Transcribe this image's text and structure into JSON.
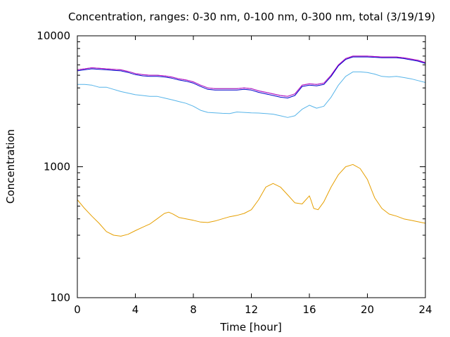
{
  "chart_data": {
    "type": "line",
    "title": "Concentration, ranges: 0-30 nm, 0-100 nm, 0-300 nm, total (3/19/19)",
    "xlabel": "Time [hour]",
    "ylabel": "Concentration",
    "xlim": [
      0,
      24
    ],
    "ylim": [
      100,
      10000
    ],
    "yscale": "log",
    "grid": false,
    "legend": "none",
    "x_ticks": [
      "0",
      "4",
      "8",
      "12",
      "16",
      "20",
      "24"
    ],
    "y_ticks": [
      "100",
      "1000",
      "10000"
    ],
    "series": [
      {
        "color": "#e69f00",
        "x": [
          0,
          0.5,
          1,
          1.5,
          2,
          2.5,
          3,
          3.5,
          4,
          4.5,
          5,
          5.5,
          6,
          6.3,
          6.6,
          7,
          7.5,
          8,
          8.5,
          9,
          9.5,
          10,
          10.5,
          11,
          11.5,
          12,
          12.5,
          13,
          13.5,
          14,
          14.5,
          15,
          15.5,
          16,
          16.1,
          16.3,
          16.6,
          17,
          17.5,
          18,
          18.5,
          19,
          19.5,
          20,
          20.5,
          21,
          21.5,
          22,
          22.5,
          23,
          23.5,
          24
        ],
        "y": [
          560,
          480,
          420,
          370,
          320,
          300,
          295,
          305,
          325,
          345,
          365,
          400,
          440,
          450,
          435,
          410,
          400,
          390,
          378,
          375,
          385,
          400,
          415,
          425,
          440,
          470,
          560,
          700,
          745,
          700,
          610,
          530,
          520,
          600,
          560,
          480,
          470,
          540,
          700,
          870,
          1000,
          1040,
          970,
          800,
          580,
          480,
          435,
          420,
          400,
          390,
          380,
          370
        ]
      },
      {
        "color": "#56b4e9",
        "x": [
          0,
          0.5,
          1,
          1.5,
          2,
          2.5,
          3,
          3.5,
          4,
          4.5,
          5,
          5.5,
          6,
          6.5,
          7,
          7.5,
          8,
          8.5,
          9,
          9.5,
          10,
          10.5,
          11,
          11.5,
          12,
          12.5,
          13,
          13.5,
          14,
          14.5,
          15,
          15.5,
          16,
          16.5,
          17,
          17.5,
          18,
          18.5,
          19,
          19.5,
          20,
          20.5,
          21,
          21.5,
          22,
          22.5,
          23,
          23.5,
          24
        ],
        "y": [
          4250,
          4250,
          4200,
          4050,
          4050,
          3900,
          3750,
          3650,
          3550,
          3500,
          3450,
          3450,
          3350,
          3250,
          3150,
          3050,
          2900,
          2700,
          2600,
          2580,
          2560,
          2550,
          2620,
          2600,
          2580,
          2570,
          2550,
          2520,
          2450,
          2380,
          2450,
          2750,
          2950,
          2800,
          2900,
          3400,
          4200,
          4900,
          5300,
          5300,
          5250,
          5100,
          4900,
          4850,
          4900,
          4800,
          4700,
          4550,
          4400
        ]
      },
      {
        "color": "#009e73",
        "x": [
          0,
          0.5,
          1,
          1.5,
          2,
          2.5,
          3,
          3.5,
          4,
          4.5,
          5,
          5.5,
          6,
          6.5,
          7,
          7.5,
          8,
          8.5,
          9,
          9.5,
          10,
          10.5,
          11,
          11.5,
          12,
          12.5,
          13,
          13.5,
          14,
          14.5,
          15,
          15.5,
          16,
          16.5,
          17,
          17.5,
          18,
          18.5,
          19,
          19.5,
          20,
          20.5,
          21,
          21.5,
          22,
          22.5,
          23,
          23.5,
          24
        ],
        "y": [
          5500,
          5600,
          5700,
          5650,
          5600,
          5550,
          5500,
          5350,
          5150,
          5050,
          5000,
          5000,
          4950,
          4850,
          4700,
          4600,
          4450,
          4200,
          4000,
          3950,
          3950,
          3950,
          3950,
          4000,
          3950,
          3800,
          3700,
          3600,
          3500,
          3450,
          3600,
          4200,
          4300,
          4250,
          4350,
          5000,
          6000,
          6700,
          7000,
          7000,
          7000,
          6950,
          6900,
          6900,
          6900,
          6800,
          6650,
          6500,
          6250
        ]
      },
      {
        "color": "#cc00cc",
        "x": [
          0,
          0.5,
          1,
          1.5,
          2,
          2.5,
          3,
          3.5,
          4,
          4.5,
          5,
          5.5,
          6,
          6.5,
          7,
          7.5,
          8,
          8.5,
          9,
          9.5,
          10,
          10.5,
          11,
          11.5,
          12,
          12.5,
          13,
          13.5,
          14,
          14.5,
          15,
          15.5,
          16,
          16.5,
          17,
          17.5,
          18,
          18.5,
          19,
          19.5,
          20,
          20.5,
          21,
          21.5,
          22,
          22.5,
          23,
          23.5,
          24
        ],
        "y": [
          5500,
          5600,
          5700,
          5650,
          5600,
          5550,
          5500,
          5350,
          5150,
          5050,
          5000,
          5000,
          4950,
          4850,
          4700,
          4600,
          4450,
          4200,
          4000,
          3950,
          3950,
          3950,
          3950,
          4000,
          3950,
          3800,
          3700,
          3600,
          3500,
          3450,
          3600,
          4200,
          4300,
          4250,
          4350,
          5000,
          6000,
          6700,
          7000,
          7000,
          7000,
          6950,
          6900,
          6900,
          6900,
          6800,
          6650,
          6500,
          6250
        ]
      },
      {
        "color": "#0000cc",
        "x": [
          0,
          0.5,
          1,
          1.5,
          2,
          2.5,
          3,
          3.5,
          4,
          4.5,
          5,
          5.5,
          6,
          6.5,
          7,
          7.5,
          8,
          8.5,
          9,
          9.5,
          10,
          10.5,
          11,
          11.5,
          12,
          12.5,
          13,
          13.5,
          14,
          14.5,
          15,
          15.5,
          16,
          16.5,
          17,
          17.5,
          18,
          18.5,
          19,
          19.5,
          20,
          20.5,
          21,
          21.5,
          22,
          22.5,
          23,
          23.5,
          24
        ],
        "y": [
          5400,
          5500,
          5600,
          5550,
          5500,
          5450,
          5400,
          5250,
          5050,
          4950,
          4900,
          4900,
          4850,
          4750,
          4600,
          4500,
          4350,
          4100,
          3900,
          3850,
          3850,
          3850,
          3850,
          3900,
          3850,
          3700,
          3600,
          3500,
          3400,
          3350,
          3500,
          4100,
          4200,
          4150,
          4250,
          4900,
          5900,
          6600,
          6900,
          6900,
          6900,
          6850,
          6800,
          6800,
          6800,
          6700,
          6550,
          6400,
          6150
        ]
      }
    ]
  }
}
